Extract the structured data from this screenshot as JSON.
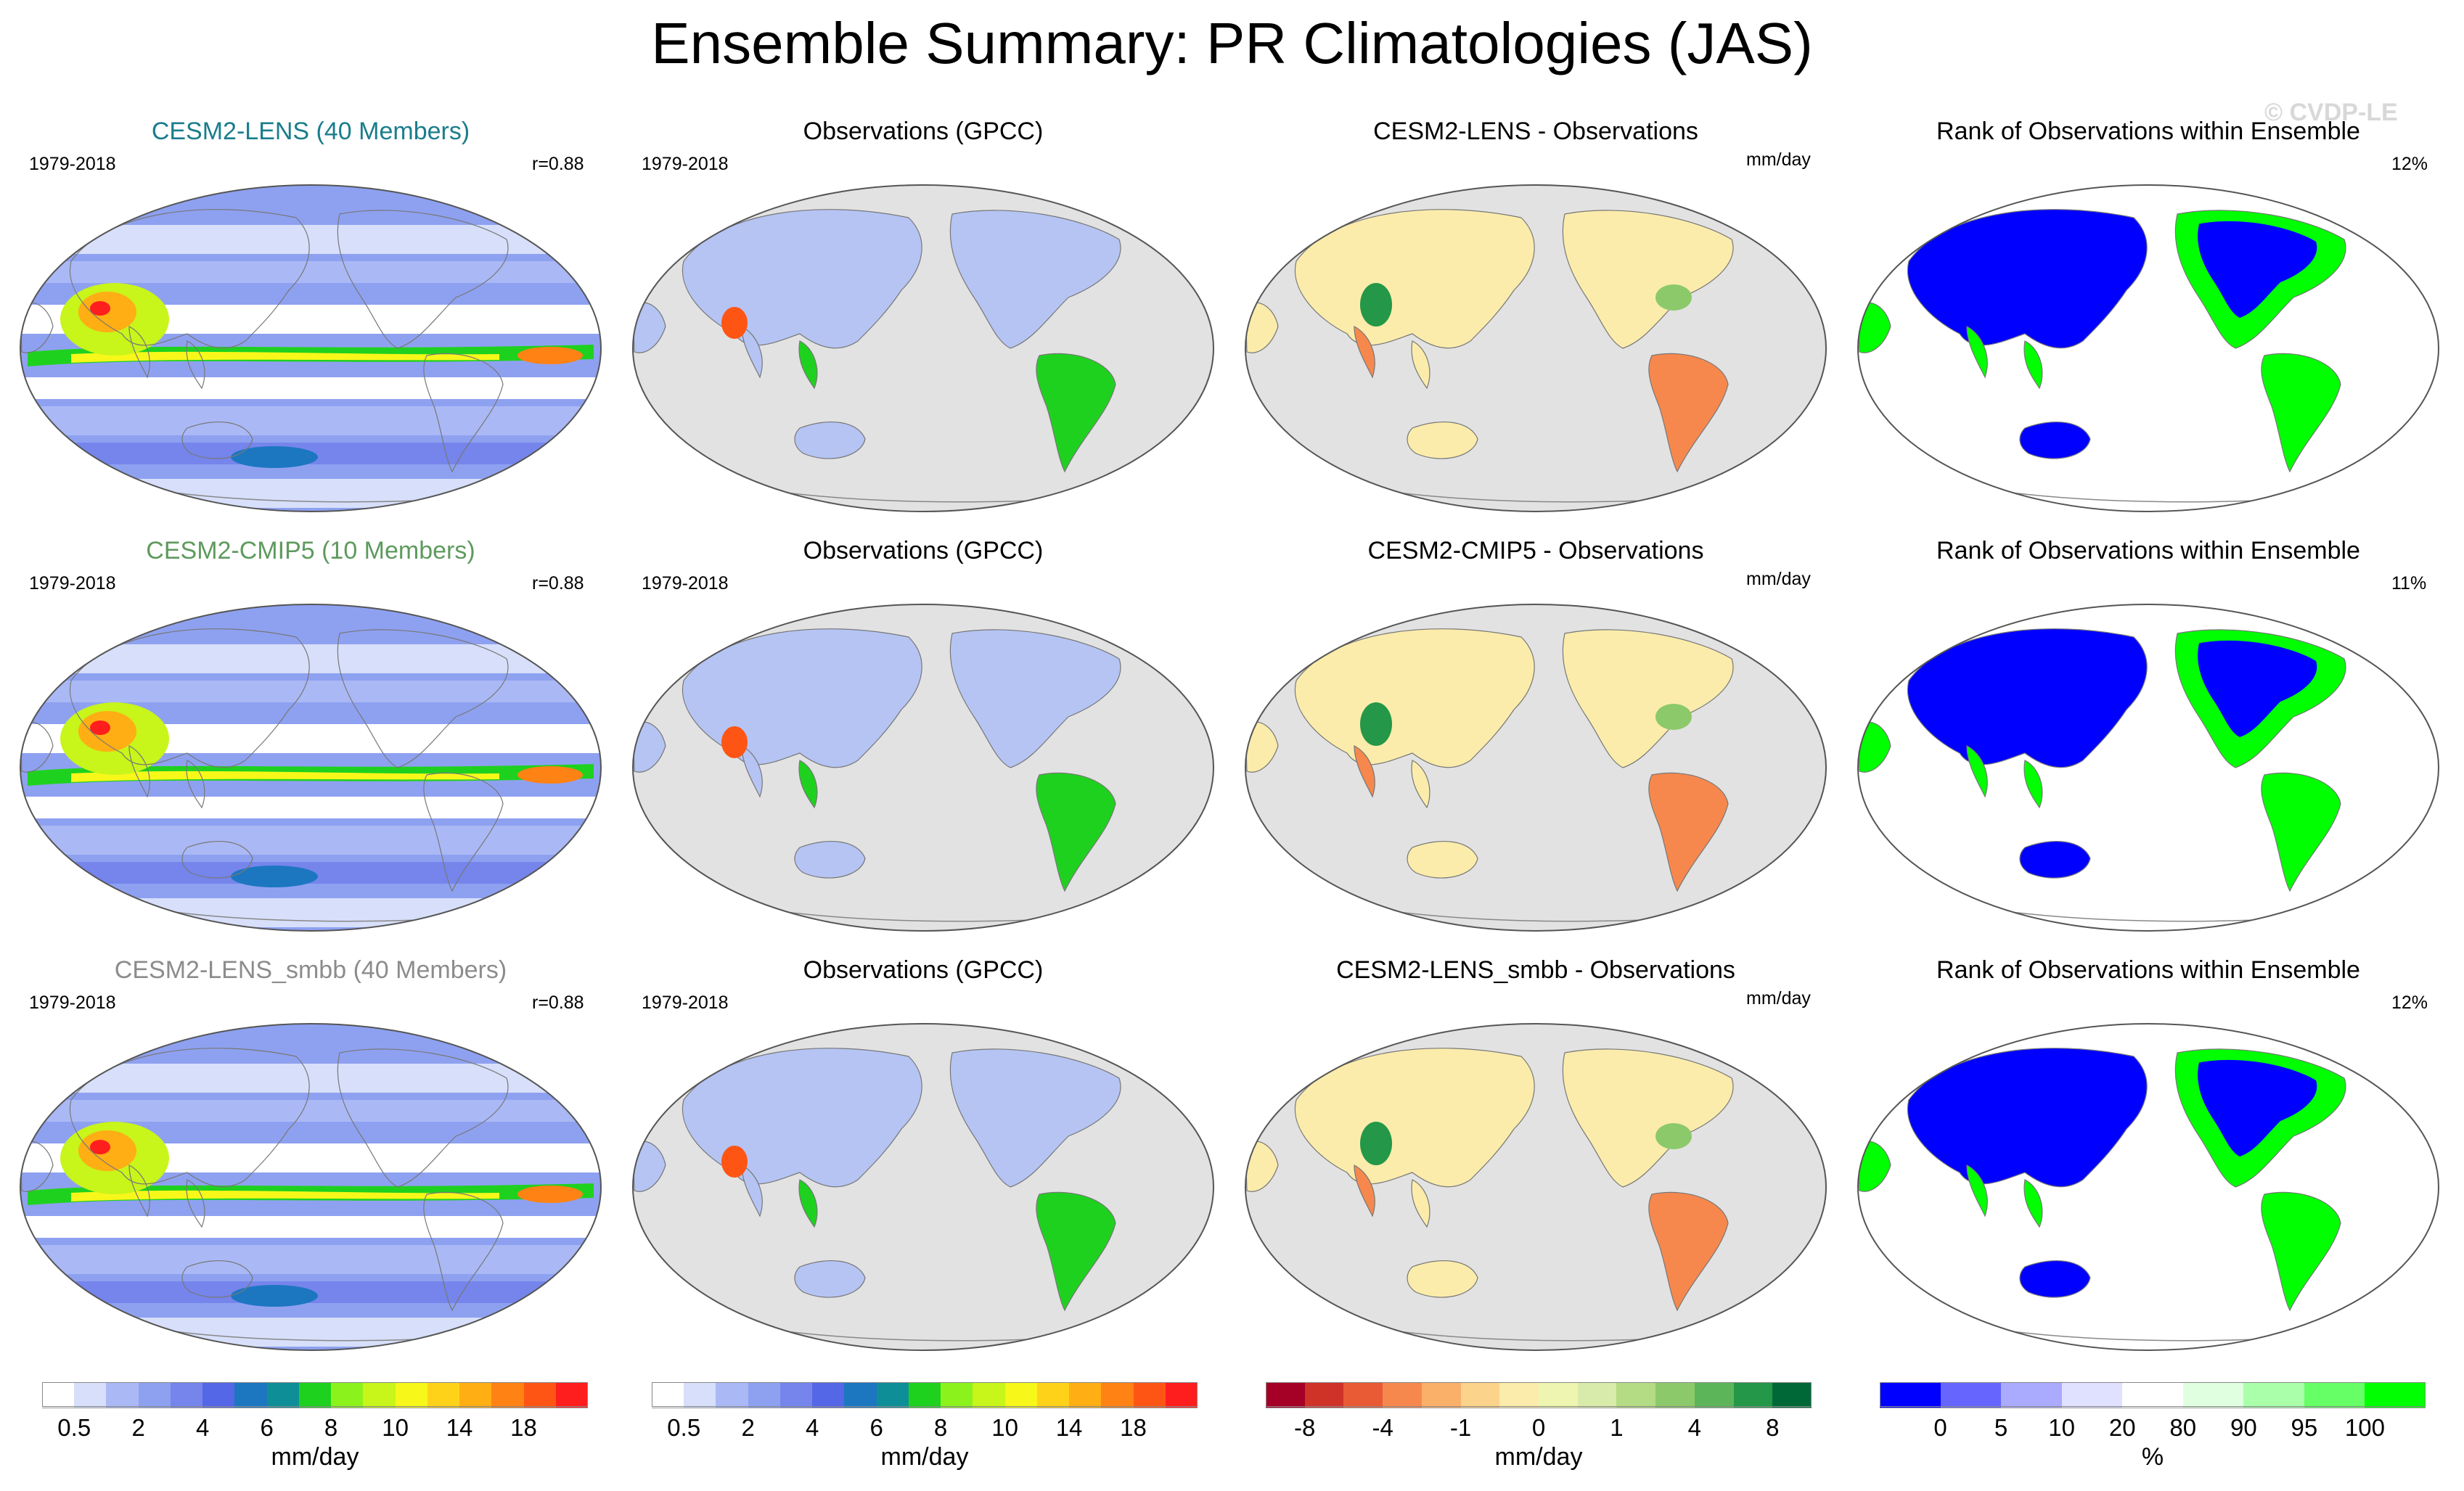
{
  "title": "Ensemble Summary: PR Climatologies (JAS)",
  "watermark": "© CVDP-LE",
  "colors": {
    "ocean_gray": "#e2e2e2",
    "title_lens": "#1a7d8c",
    "title_cmip5": "#5e9a5e",
    "title_smbb": "#8c8c8c"
  },
  "rows": [
    {
      "model_title": "CESM2-LENS (40 Members)",
      "model_title_color": "#1a7d8c",
      "period": "1979-2018",
      "correlation": "r=0.88",
      "obs_title": "Observations (GPCC)",
      "obs_period": "1979-2018",
      "diff_title": "CESM2-LENS - Observations",
      "diff_units": "mm/day",
      "rank_title": "Rank of Observations within Ensemble",
      "rank_pct": "12%"
    },
    {
      "model_title": "CESM2-CMIP5 (10 Members)",
      "model_title_color": "#5e9a5e",
      "period": "1979-2018",
      "correlation": "r=0.88",
      "obs_title": "Observations (GPCC)",
      "obs_period": "1979-2018",
      "diff_title": "CESM2-CMIP5 - Observations",
      "diff_units": "mm/day",
      "rank_title": "Rank of Observations within Ensemble",
      "rank_pct": "11%"
    },
    {
      "model_title": "CESM2-LENS_smbb (40 Members)",
      "model_title_color": "#8c8c8c",
      "period": "1979-2018",
      "correlation": "r=0.88",
      "obs_title": "Observations (GPCC)",
      "obs_period": "1979-2018",
      "diff_title": "CESM2-LENS_smbb - Observations",
      "diff_units": "mm/day",
      "rank_title": "Rank of Observations within Ensemble",
      "rank_pct": "12%"
    }
  ],
  "colorbars": [
    {
      "name": "precip-model",
      "colors": [
        "#ffffff",
        "#d7dffa",
        "#aab9f5",
        "#8ea1f0",
        "#7585ec",
        "#5467e6",
        "#1c77c0",
        "#0e8f98",
        "#1fd11f",
        "#8cf21c",
        "#c8f51a",
        "#f7f71a",
        "#ffd21a",
        "#ffae14",
        "#ff8214",
        "#ff5514",
        "#ff1e1e"
      ],
      "labels": [
        "0.5",
        "2",
        "4",
        "6",
        "8",
        "10",
        "14",
        "18"
      ],
      "label_boundaries": [
        1,
        3,
        5,
        7,
        9,
        11,
        13,
        15
      ],
      "units": "mm/day"
    },
    {
      "name": "precip-obs",
      "colors": [
        "#ffffff",
        "#d7dffa",
        "#aab9f5",
        "#8ea1f0",
        "#7585ec",
        "#5467e6",
        "#1c77c0",
        "#0e8f98",
        "#1fd11f",
        "#8cf21c",
        "#c8f51a",
        "#f7f71a",
        "#ffd21a",
        "#ffae14",
        "#ff8214",
        "#ff5514",
        "#ff1e1e"
      ],
      "labels": [
        "0.5",
        "2",
        "4",
        "6",
        "8",
        "10",
        "14",
        "18"
      ],
      "label_boundaries": [
        1,
        3,
        5,
        7,
        9,
        11,
        13,
        15
      ],
      "units": "mm/day"
    },
    {
      "name": "precip-diff",
      "colors": [
        "#a50026",
        "#cf3328",
        "#e95b35",
        "#f6884e",
        "#fbb06a",
        "#fcd38a",
        "#fbecab",
        "#eef5b0",
        "#d8ebaa",
        "#b4dc84",
        "#8cc96a",
        "#5db55a",
        "#249748",
        "#006837"
      ],
      "labels": [
        "-8",
        "-4",
        "-1",
        "0",
        "1",
        "4",
        "8"
      ],
      "label_boundaries": [
        1,
        3,
        5,
        7,
        9,
        11,
        13
      ],
      "units": "mm/day"
    },
    {
      "name": "rank",
      "colors": [
        "#0000ff",
        "#6666ff",
        "#aaaaff",
        "#e0e0ff",
        "#ffffff",
        "#e0ffe0",
        "#aaffaa",
        "#66ff66",
        "#00ff00"
      ],
      "labels": [
        "0",
        "5",
        "10",
        "20",
        "80",
        "90",
        "95",
        "100"
      ],
      "label_boundaries": [
        1,
        2,
        3,
        4,
        5,
        6,
        7,
        8
      ],
      "units": "%"
    }
  ]
}
